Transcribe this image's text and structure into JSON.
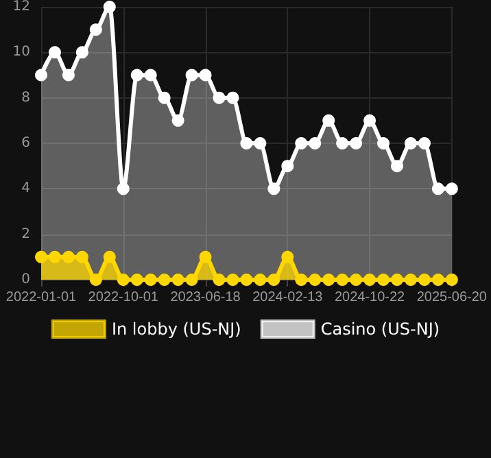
{
  "chart_data": {
    "type": "area",
    "categories": [
      "2022-01-01",
      null,
      null,
      null,
      null,
      null,
      "2022-10-01",
      null,
      null,
      null,
      null,
      null,
      "2023-06-18",
      null,
      null,
      null,
      null,
      null,
      "2024-02-13",
      null,
      null,
      null,
      null,
      null,
      "2024-10-22",
      null,
      null,
      null,
      null,
      null,
      "2025-06-20"
    ],
    "series": [
      {
        "name": "In lobby (US-NJ)",
        "color": "#ffd700",
        "values": [
          1,
          1,
          1,
          1,
          0,
          1,
          0,
          0,
          0,
          0,
          0,
          0,
          1,
          0,
          0,
          0,
          0,
          0,
          1,
          0,
          0,
          0,
          0,
          0,
          0,
          0,
          0,
          0,
          0,
          0,
          0
        ]
      },
      {
        "name": "Casino (US-NJ)",
        "color": "#ffffff",
        "values": [
          9,
          10,
          9,
          10,
          11,
          12,
          4,
          9,
          9,
          8,
          7,
          9,
          9,
          8,
          8,
          6,
          6,
          4,
          5,
          6,
          6,
          7,
          6,
          6,
          7,
          6,
          5,
          6,
          6,
          4,
          4
        ]
      }
    ],
    "ylim": [
      0,
      12
    ],
    "yticks": [
      0,
      2,
      4,
      6,
      8,
      10,
      12
    ],
    "grid": true,
    "legend": "bottom",
    "marker": "circle"
  }
}
